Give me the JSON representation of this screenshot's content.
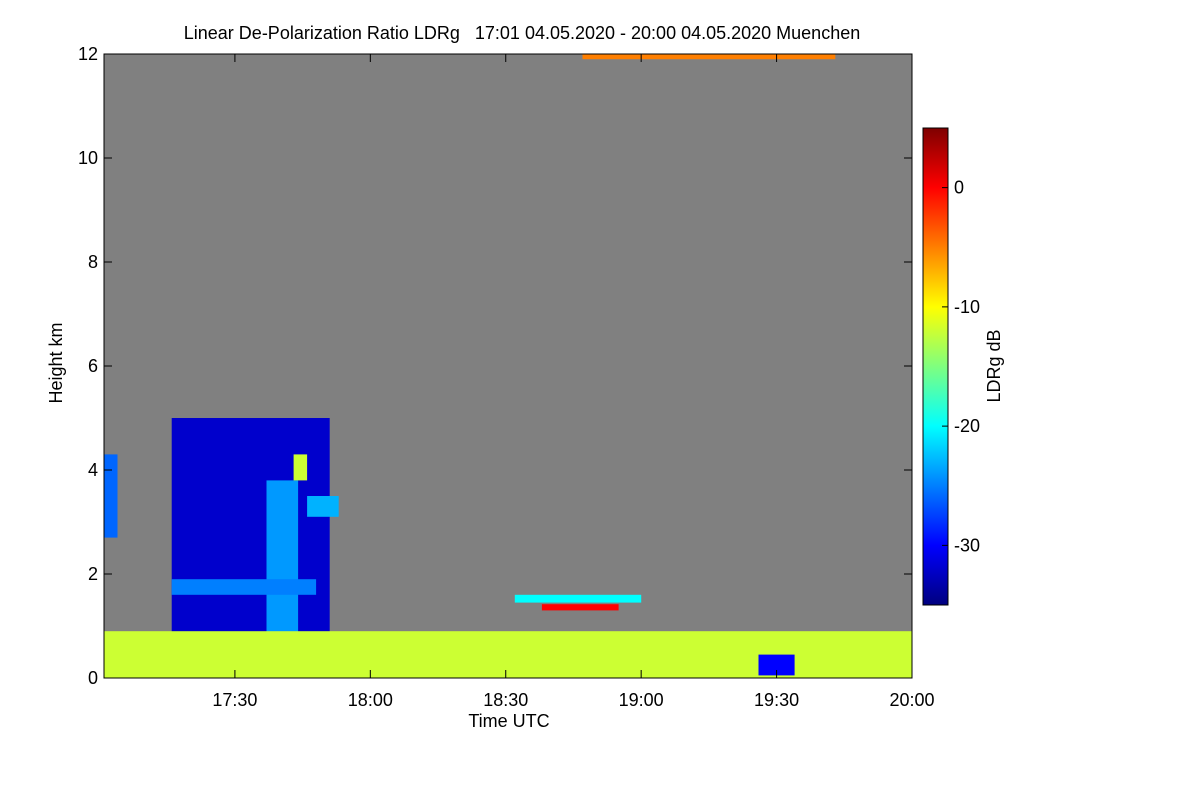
{
  "chart_data": {
    "type": "heatmap",
    "title": "Linear De-Polarization Ratio LDRg   17:01 04.05.2020 - 20:00 04.05.2020 Muenchen",
    "xlabel": "Time UTC",
    "ylabel": "Height km",
    "x_ticks": [
      "17:30",
      "18:00",
      "18:30",
      "19:00",
      "19:30",
      "20:00"
    ],
    "x_tick_minutes": [
      1050,
      1080,
      1110,
      1140,
      1170,
      1200
    ],
    "xlim_minutes": [
      1021,
      1200
    ],
    "y_ticks": [
      0,
      2,
      4,
      6,
      8,
      10,
      12
    ],
    "ylim": [
      0,
      12
    ],
    "background_color": "#808080",
    "colorbar": {
      "label": "LDRg dB",
      "ticks": [
        0,
        -10,
        -20,
        -30
      ],
      "range": [
        -35,
        5
      ],
      "colors": [
        "#00007f",
        "#0000ff",
        "#007fff",
        "#00ffff",
        "#7fff7f",
        "#ffff00",
        "#ff7f00",
        "#ff0000",
        "#7f0000"
      ]
    },
    "regions": [
      {
        "t0": 1021,
        "t1": 1024,
        "h0": 2.7,
        "h1": 4.3,
        "ldr": -26
      },
      {
        "t0": 1036,
        "t1": 1071,
        "h0": 0.1,
        "h1": 5.0,
        "ldr": -32
      },
      {
        "t0": 1057,
        "t1": 1064,
        "h0": 0.1,
        "h1": 3.8,
        "ldr": -24
      },
      {
        "t0": 1036,
        "t1": 1068,
        "h0": 1.6,
        "h1": 1.9,
        "ldr": -25
      },
      {
        "t0": 1066,
        "t1": 1073,
        "h0": 3.1,
        "h1": 3.5,
        "ldr": -23
      },
      {
        "t0": 1063,
        "t1": 1066,
        "h0": 3.8,
        "h1": 4.3,
        "ldr": -12
      },
      {
        "t0": 1021,
        "t1": 1200,
        "h0": 0.0,
        "h1": 0.9,
        "ldr": -12
      },
      {
        "t0": 1112,
        "t1": 1140,
        "h0": 1.45,
        "h1": 1.6,
        "ldr": -20
      },
      {
        "t0": 1118,
        "t1": 1135,
        "h0": 1.3,
        "h1": 1.42,
        "ldr": 0
      },
      {
        "t0": 1166,
        "t1": 1174,
        "h0": 0.05,
        "h1": 0.45,
        "ldr": -30
      },
      {
        "t0": 1127,
        "t1": 1183,
        "h0": 11.9,
        "h1": 12.0,
        "ldr": -5
      }
    ]
  }
}
